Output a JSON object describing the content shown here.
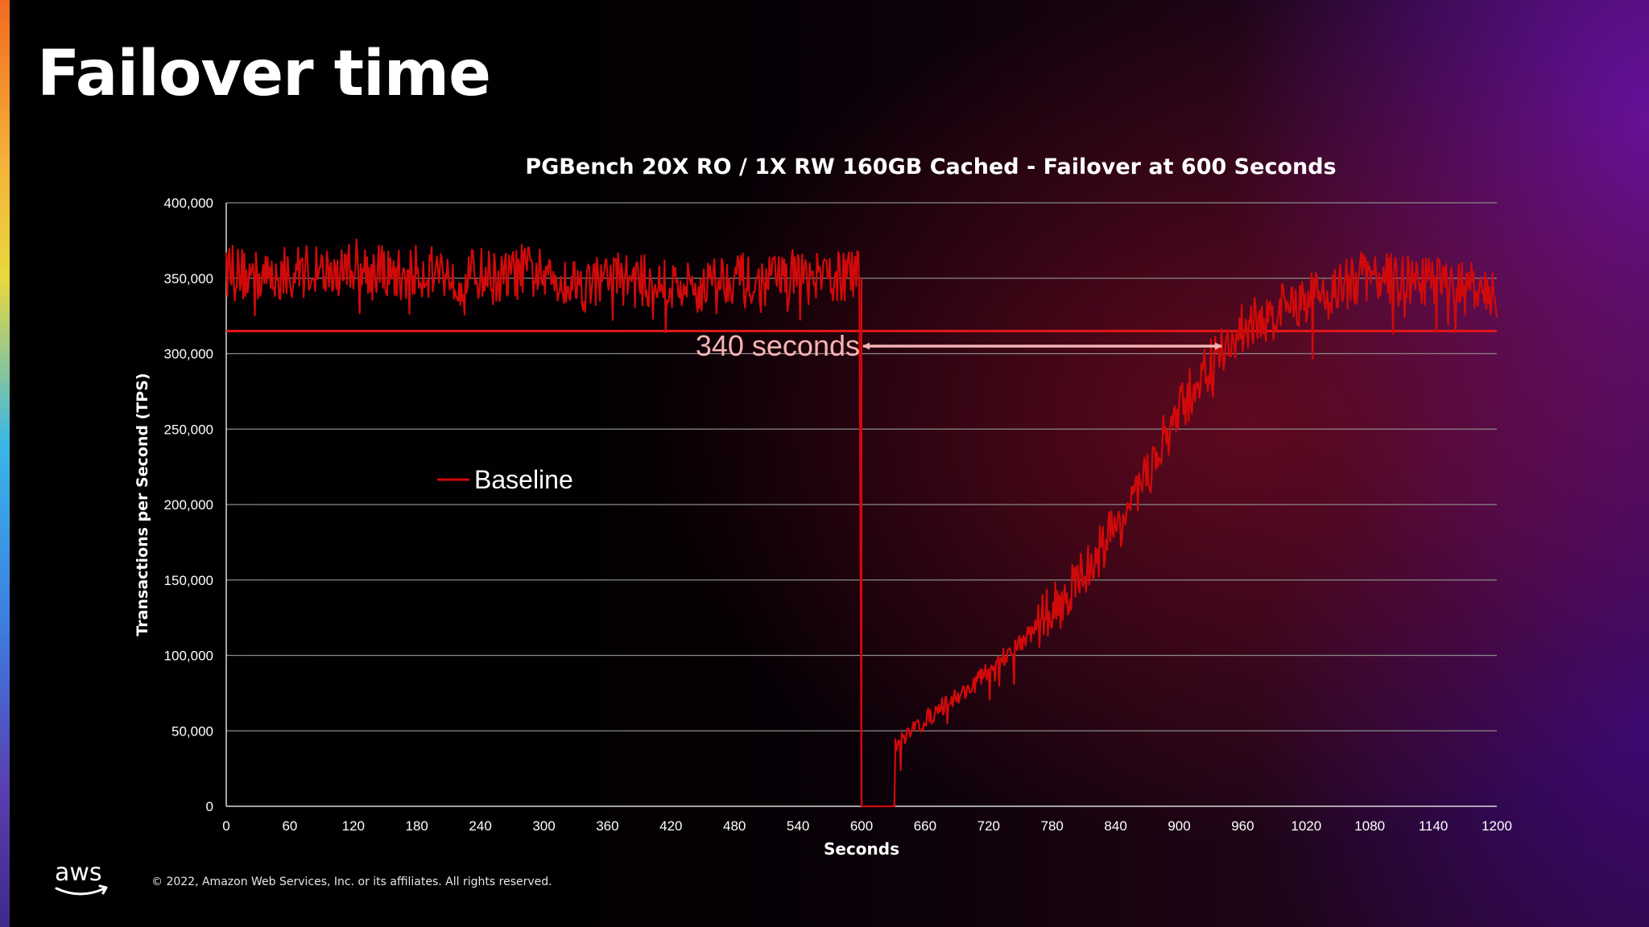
{
  "slide": {
    "title": "Failover time",
    "copyright": "© 2022, Amazon Web Services, Inc. or its affiliates. All rights reserved.",
    "logo_text": "aws"
  },
  "colors": {
    "series": "#d00a0a",
    "threshold": "#e21818",
    "annotation": "#f4b3b3",
    "grid": "#8a8a8a"
  },
  "chart_data": {
    "type": "line",
    "title": "PGBench 20X RO / 1X RW 160GB Cached - Failover at 600 Seconds",
    "xlabel": "Seconds",
    "ylabel": "Transactions per Second (TPS)",
    "xlim": [
      0,
      1200
    ],
    "ylim": [
      0,
      400000
    ],
    "x_ticks": [
      0,
      60,
      120,
      180,
      240,
      300,
      360,
      420,
      480,
      540,
      600,
      660,
      720,
      780,
      840,
      900,
      960,
      1020,
      1080,
      1140,
      1200
    ],
    "y_ticks": [
      0,
      50000,
      100000,
      150000,
      200000,
      250000,
      300000,
      350000,
      400000
    ],
    "y_tick_labels": [
      "0",
      "50,000",
      "100,000",
      "150,000",
      "200,000",
      "250,000",
      "300,000",
      "350,000",
      "400,000"
    ],
    "grid": "horizontal",
    "legend": {
      "position": "left-center",
      "entries": [
        "Baseline"
      ]
    },
    "series": [
      {
        "name": "Baseline",
        "x": [
          0,
          20,
          40,
          60,
          80,
          100,
          120,
          140,
          160,
          180,
          200,
          220,
          240,
          260,
          280,
          300,
          320,
          340,
          360,
          380,
          400,
          420,
          440,
          460,
          480,
          500,
          520,
          540,
          560,
          580,
          598,
          600,
          630,
          632,
          640,
          660,
          680,
          700,
          720,
          740,
          760,
          780,
          800,
          820,
          840,
          860,
          880,
          900,
          920,
          940,
          960,
          980,
          1000,
          1020,
          1040,
          1060,
          1080,
          1100,
          1120,
          1140,
          1160,
          1180,
          1200
        ],
        "y": [
          355000,
          352000,
          350000,
          354000,
          356000,
          353000,
          360000,
          355000,
          351000,
          354000,
          356000,
          350000,
          353000,
          349000,
          355000,
          352000,
          350000,
          345000,
          352000,
          349000,
          347000,
          345000,
          343000,
          348000,
          352000,
          343000,
          350000,
          352000,
          348000,
          352000,
          350000,
          0,
          0,
          42000,
          47000,
          57000,
          68000,
          77000,
          90000,
          103000,
          115000,
          130000,
          145000,
          165000,
          185000,
          205000,
          235000,
          260000,
          285000,
          300000,
          318000,
          322000,
          330000,
          336000,
          340000,
          346000,
          352000,
          350000,
          346000,
          348000,
          345000,
          342000,
          338000
        ],
        "noise_amplitude": 18000
      }
    ],
    "reference_lines": [
      {
        "type": "horizontal",
        "y": 315000
      },
      {
        "type": "vertical",
        "x": 600
      }
    ],
    "annotations": [
      {
        "text": "340 seconds",
        "type": "double-arrow",
        "x_start": 600,
        "x_end": 940,
        "y": 305000
      }
    ]
  }
}
